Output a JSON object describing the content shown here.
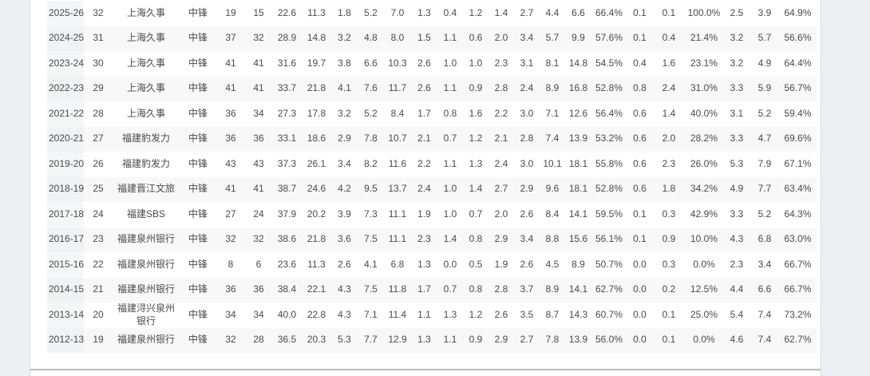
{
  "colors": {
    "page_background": "#edeff2",
    "card_background": "#ffffff",
    "card_border": "#dadce0",
    "row_stripe": "#f8f8f9",
    "season_column": "#f5f6f7",
    "season_column_striped": "#f1f2f4",
    "text": "#4a4a4a",
    "bottom_divider": "#b9babd"
  },
  "table": {
    "rows": [
      [
        "2025-26",
        "32",
        "上海久事",
        "中锋",
        "19",
        "15",
        "22.6",
        "11.3",
        "1.8",
        "5.2",
        "7.0",
        "1.3",
        "0.4",
        "1.2",
        "1.4",
        "2.7",
        "4.4",
        "6.6",
        "66.4%",
        "0.1",
        "0.1",
        "100.0%",
        "2.5",
        "3.9",
        "64.9%"
      ],
      [
        "2024-25",
        "31",
        "上海久事",
        "中锋",
        "37",
        "32",
        "28.9",
        "14.8",
        "3.2",
        "4.8",
        "8.0",
        "1.5",
        "1.1",
        "0.6",
        "2.0",
        "3.4",
        "5.7",
        "9.9",
        "57.6%",
        "0.1",
        "0.4",
        "21.4%",
        "3.2",
        "5.7",
        "56.6%"
      ],
      [
        "2023-24",
        "30",
        "上海久事",
        "中锋",
        "41",
        "41",
        "31.6",
        "19.7",
        "3.8",
        "6.6",
        "10.3",
        "2.6",
        "1.0",
        "1.0",
        "2.3",
        "3.1",
        "8.1",
        "14.8",
        "54.5%",
        "0.4",
        "1.6",
        "23.1%",
        "3.2",
        "4.9",
        "64.4%"
      ],
      [
        "2022-23",
        "29",
        "上海久事",
        "中锋",
        "41",
        "41",
        "33.7",
        "21.8",
        "4.1",
        "7.6",
        "11.7",
        "2.6",
        "1.1",
        "0.9",
        "2.8",
        "2.4",
        "8.9",
        "16.8",
        "52.8%",
        "0.8",
        "2.4",
        "31.0%",
        "3.3",
        "5.9",
        "56.7%"
      ],
      [
        "2021-22",
        "28",
        "上海久事",
        "中锋",
        "36",
        "34",
        "27.3",
        "17.8",
        "3.2",
        "5.2",
        "8.4",
        "1.7",
        "0.8",
        "1.6",
        "2.2",
        "3.0",
        "7.1",
        "12.6",
        "56.4%",
        "0.6",
        "1.4",
        "40.0%",
        "3.1",
        "5.2",
        "59.4%"
      ],
      [
        "2020-21",
        "27",
        "福建豹发力",
        "中锋",
        "36",
        "36",
        "33.1",
        "18.6",
        "2.9",
        "7.8",
        "10.7",
        "2.1",
        "0.7",
        "1.2",
        "2.1",
        "2.8",
        "7.4",
        "13.9",
        "53.2%",
        "0.6",
        "2.0",
        "28.2%",
        "3.3",
        "4.7",
        "69.6%"
      ],
      [
        "2019-20",
        "26",
        "福建豹发力",
        "中锋",
        "43",
        "43",
        "37.3",
        "26.1",
        "3.4",
        "8.2",
        "11.6",
        "2.2",
        "1.1",
        "1.3",
        "2.4",
        "3.0",
        "10.1",
        "18.1",
        "55.8%",
        "0.6",
        "2.3",
        "26.0%",
        "5.3",
        "7.9",
        "67.1%"
      ],
      [
        "2018-19",
        "25",
        "福建晋江文旅",
        "中锋",
        "41",
        "41",
        "38.7",
        "24.6",
        "4.2",
        "9.5",
        "13.7",
        "2.4",
        "1.0",
        "1.4",
        "2.7",
        "2.9",
        "9.6",
        "18.1",
        "52.8%",
        "0.6",
        "1.8",
        "34.2%",
        "4.9",
        "7.7",
        "63.4%"
      ],
      [
        "2017-18",
        "24",
        "福建SBS",
        "中锋",
        "27",
        "24",
        "37.9",
        "20.2",
        "3.9",
        "7.3",
        "11.1",
        "1.9",
        "1.0",
        "0.7",
        "2.0",
        "2.6",
        "8.4",
        "14.1",
        "59.5%",
        "0.1",
        "0.3",
        "42.9%",
        "3.3",
        "5.2",
        "64.3%"
      ],
      [
        "2016-17",
        "23",
        "福建泉州银行",
        "中锋",
        "32",
        "32",
        "38.6",
        "21.8",
        "3.6",
        "7.5",
        "11.1",
        "2.3",
        "1.4",
        "0.8",
        "2.9",
        "3.4",
        "8.8",
        "15.6",
        "56.1%",
        "0.1",
        "0.9",
        "10.0%",
        "4.3",
        "6.8",
        "63.0%"
      ],
      [
        "2015-16",
        "22",
        "福建泉州银行",
        "中锋",
        "8",
        "6",
        "23.6",
        "11.3",
        "2.6",
        "4.1",
        "6.8",
        "1.3",
        "0.0",
        "0.5",
        "1.9",
        "2.6",
        "4.5",
        "8.9",
        "50.7%",
        "0.0",
        "0.3",
        "0.0%",
        "2.3",
        "3.4",
        "66.7%"
      ],
      [
        "2014-15",
        "21",
        "福建泉州银行",
        "中锋",
        "36",
        "36",
        "38.4",
        "22.1",
        "4.3",
        "7.5",
        "11.8",
        "1.7",
        "0.7",
        "0.8",
        "2.8",
        "3.7",
        "8.9",
        "14.1",
        "62.7%",
        "0.0",
        "0.2",
        "12.5%",
        "4.4",
        "6.6",
        "66.7%"
      ],
      [
        "2013-14",
        "20",
        "福建浔兴泉州银行",
        "中锋",
        "34",
        "34",
        "40.0",
        "22.8",
        "4.3",
        "7.1",
        "11.4",
        "1.1",
        "1.3",
        "1.2",
        "2.6",
        "3.5",
        "8.7",
        "14.3",
        "60.7%",
        "0.0",
        "0.1",
        "25.0%",
        "5.4",
        "7.4",
        "73.2%"
      ],
      [
        "2012-13",
        "19",
        "福建泉州银行",
        "中锋",
        "32",
        "28",
        "36.5",
        "20.3",
        "5.3",
        "7.7",
        "12.9",
        "1.3",
        "1.1",
        "0.9",
        "2.9",
        "2.7",
        "7.8",
        "13.9",
        "56.0%",
        "0.0",
        "0.1",
        "0.0%",
        "4.6",
        "7.4",
        "62.7%"
      ]
    ]
  }
}
